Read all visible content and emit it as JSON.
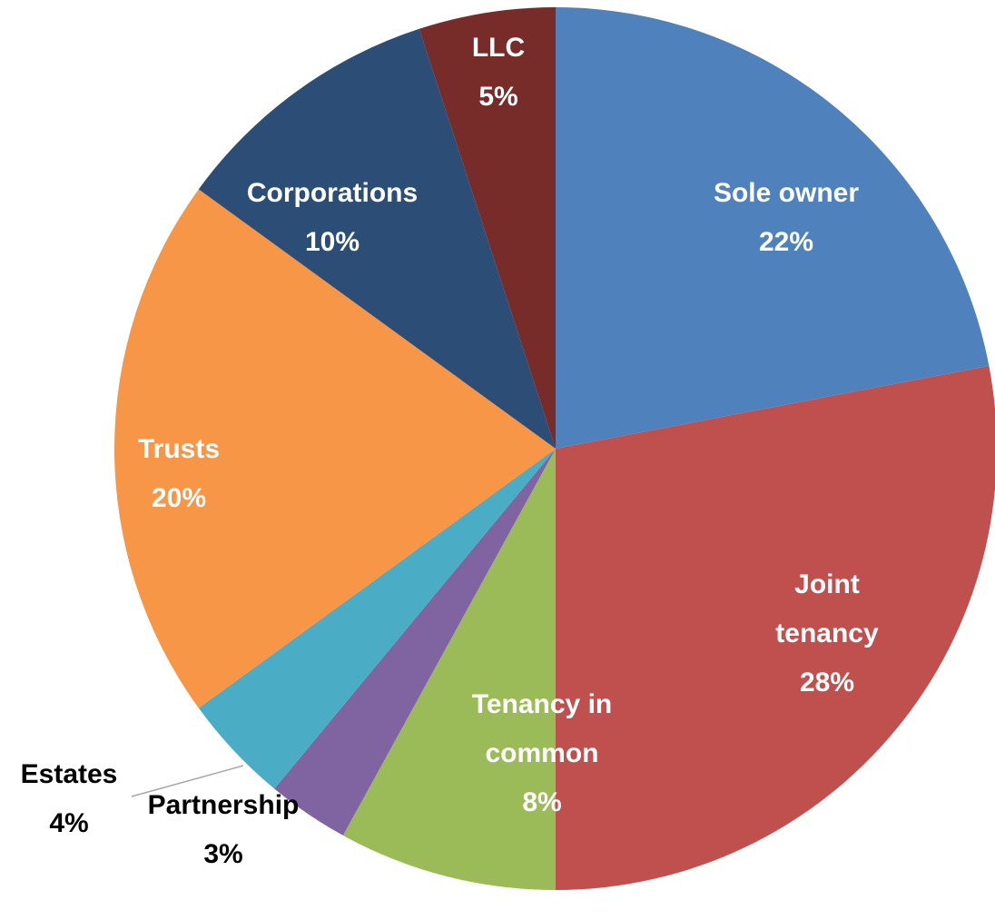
{
  "chart_data": {
    "type": "pie",
    "categories": [
      "Sole owner",
      "Joint tenancy",
      "Tenancy in common",
      "Partnership",
      "Estates",
      "Trusts",
      "Corporations",
      "LLC"
    ],
    "values": [
      22,
      28,
      8,
      3,
      4,
      20,
      10,
      5
    ],
    "value_labels": [
      "22%",
      "28%",
      "8%",
      "3%",
      "4%",
      "20%",
      "10%",
      "5%"
    ],
    "colors": [
      "#4f81bd",
      "#c0504d",
      "#9bbb59",
      "#8064a2",
      "#4bacc6",
      "#f79646",
      "#2c4d75",
      "#772c2a"
    ]
  }
}
